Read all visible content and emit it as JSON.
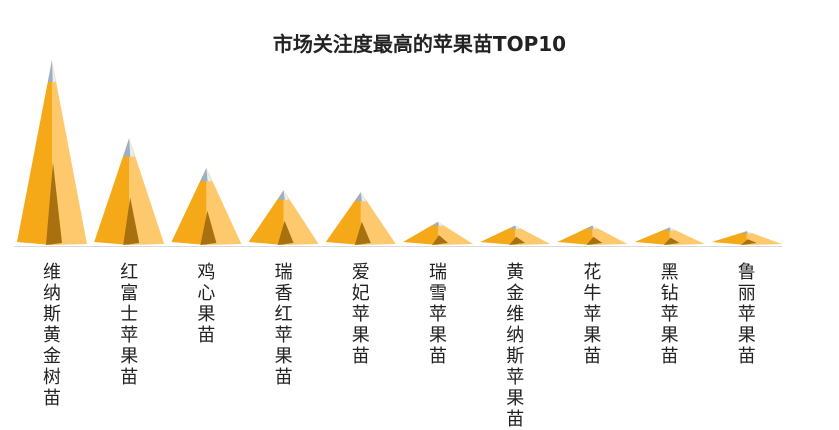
{
  "chart_data": {
    "type": "bar",
    "title": "市场关注度最高的苹果苗TOP10",
    "categories": [
      "维纳斯黄金树苗",
      "红富士苹果苗",
      "鸡心果苗",
      "瑞香红苹果苗",
      "爱妃苹果苗",
      "瑞雪苹果苗",
      "黄金维纳斯苹果苗",
      "花牛苹果苗",
      "黑钻苹果苗",
      "鲁丽苹果苗"
    ],
    "values": [
      100,
      58,
      42,
      30,
      29,
      13,
      11,
      11,
      10,
      8
    ],
    "ylim": [
      0,
      100
    ],
    "xlabel": "",
    "ylabel": "",
    "grid": false,
    "colors": {
      "left_face": "#F5A818",
      "right_face": "#FDC96C",
      "inner_shadow": "#A8700F",
      "tip": "#9AAFC8",
      "baseline": "#D9D9D9"
    }
  }
}
